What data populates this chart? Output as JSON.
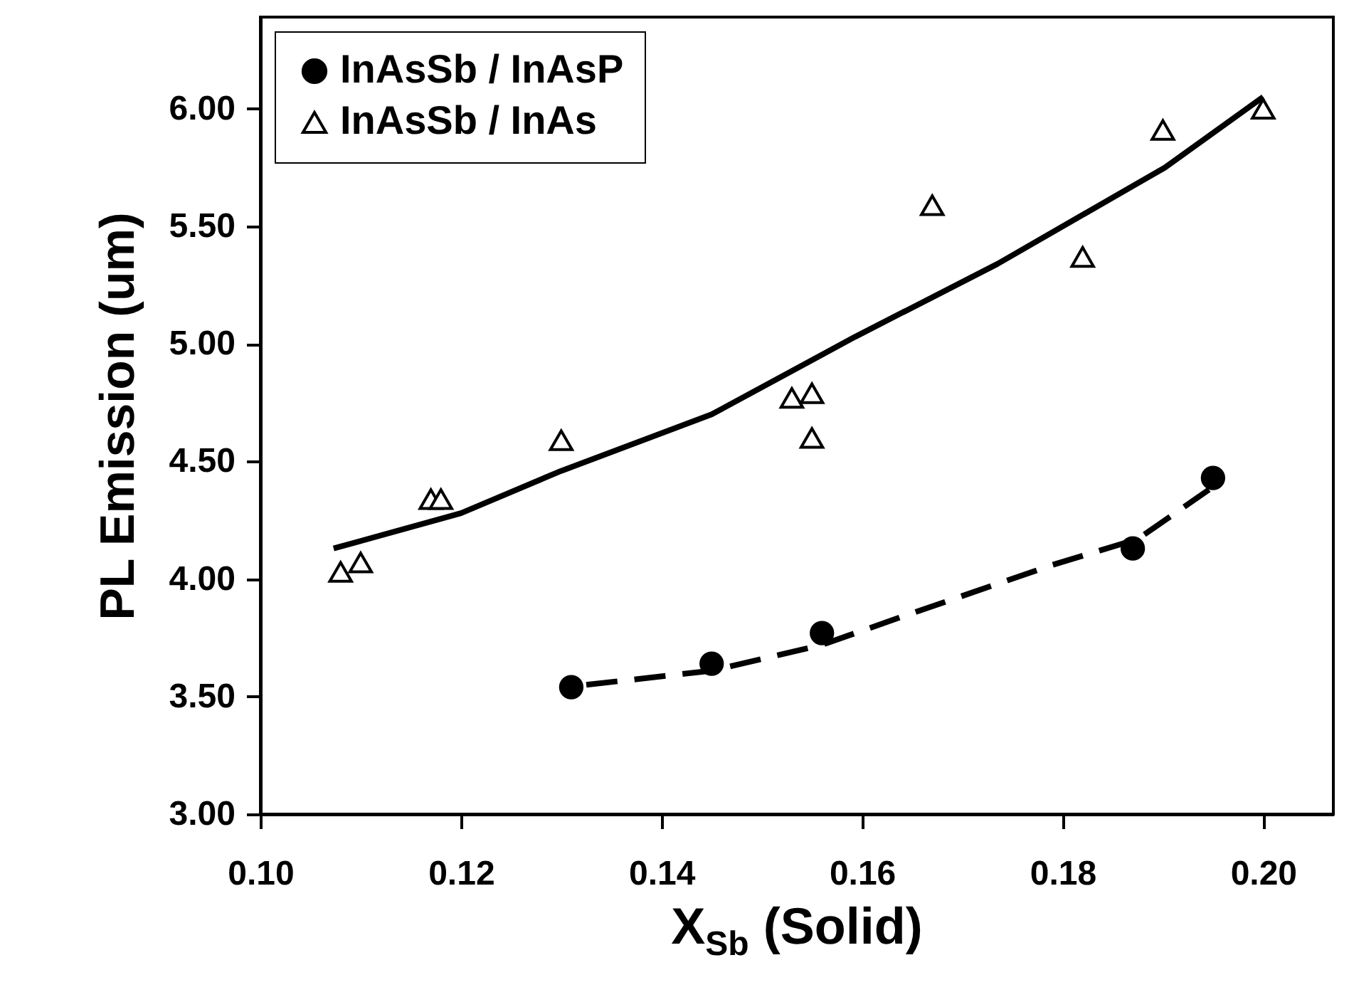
{
  "chart_data": {
    "type": "scatter",
    "xlabel": "X$_{Sb}$ (Solid)",
    "ylabel": "PL Emission (um)",
    "xlim": [
      0.1,
      0.207
    ],
    "ylim": [
      3.0,
      6.39
    ],
    "xticks": [
      {
        "value": 0.1,
        "label": "0.10"
      },
      {
        "value": 0.12,
        "label": "0.12"
      },
      {
        "value": 0.14,
        "label": "0.14"
      },
      {
        "value": 0.16,
        "label": "0.16"
      },
      {
        "value": 0.18,
        "label": "0.18"
      },
      {
        "value": 0.2,
        "label": "0.20"
      }
    ],
    "yticks": [
      {
        "value": 3,
        "label": "3.00"
      },
      {
        "value": 3.5,
        "label": "3.50"
      },
      {
        "value": 4,
        "label": "4.00"
      },
      {
        "value": 4.5,
        "label": "4.50"
      },
      {
        "value": 5,
        "label": "5.00"
      },
      {
        "value": 5.5,
        "label": "5.50"
      },
      {
        "value": 6,
        "label": "6.00"
      }
    ],
    "grid": false,
    "legend": "top left",
    "series": [
      {
        "name": "InAsSb / InAsP",
        "marker": "circle",
        "line_style": "dashed",
        "color": "#000000",
        "x": [
          0.131,
          0.145,
          0.156,
          0.187,
          0.195
        ],
        "values": [
          3.54,
          3.64,
          3.77,
          4.13,
          4.43
        ]
      },
      {
        "name": "InAsSb / InAs",
        "marker": "triangle",
        "line_style": "solid",
        "color": "#000000",
        "x": [
          0.108,
          0.11,
          0.117,
          0.118,
          0.13,
          0.153,
          0.155,
          0.155,
          0.167,
          0.182,
          0.19,
          0.2
        ],
        "values": [
          4.03,
          4.07,
          4.34,
          4.34,
          4.59,
          4.77,
          4.79,
          4.6,
          5.59,
          5.37,
          5.91,
          6.0
        ]
      },
      {
        "type": "line",
        "line_style": "dashed",
        "color": "#000000",
        "x": [
          0.1325,
          0.145,
          0.156,
          0.164,
          0.179,
          0.1875,
          0.1946
        ],
        "values": [
          3.55,
          3.61,
          3.72,
          3.84,
          4.06,
          4.17,
          4.38
        ]
      },
      {
        "type": "line",
        "line_style": "solid",
        "color": "#000000",
        "x": [
          0.1073,
          0.12,
          0.13,
          0.145,
          0.1593,
          0.1735,
          0.1902,
          0.2
        ],
        "values": [
          4.13,
          4.28,
          4.46,
          4.7,
          5.03,
          5.34,
          5.75,
          6.05
        ]
      }
    ]
  }
}
